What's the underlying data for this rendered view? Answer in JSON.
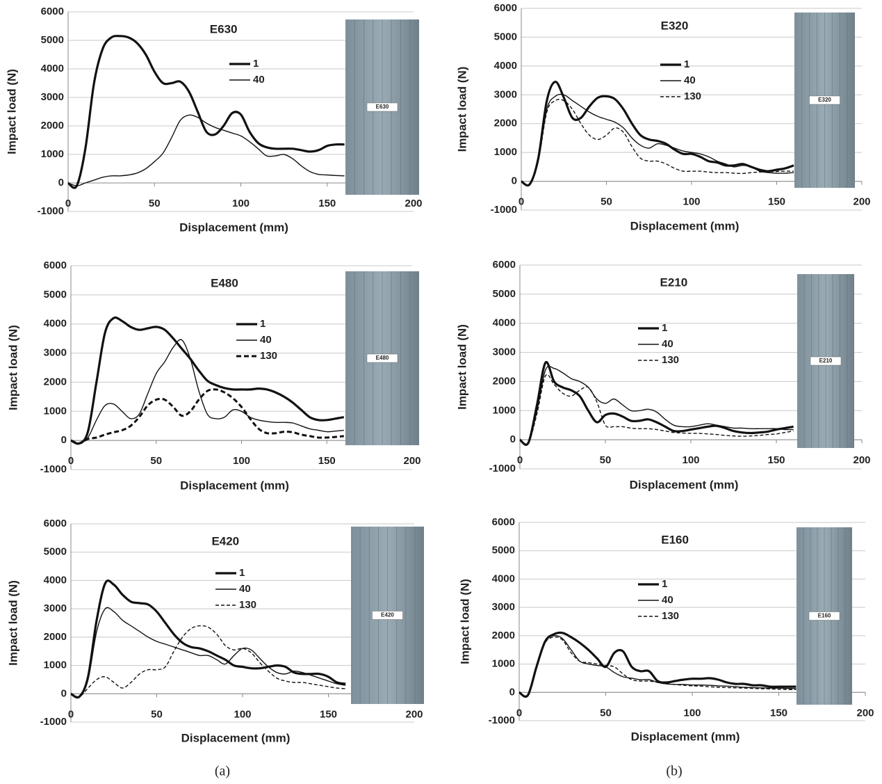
{
  "chart_data": [
    {
      "type": "line",
      "title": "E630",
      "x_label": "Displacement (mm)",
      "y_label": "Impact load  (N)",
      "photo_label": "E630",
      "xlim": [
        0,
        200
      ],
      "ylim": [
        -1000,
        6000
      ],
      "xticks": [
        0,
        50,
        100,
        150,
        200
      ],
      "yticks": [
        -1000,
        0,
        1000,
        2000,
        3000,
        4000,
        5000,
        6000
      ],
      "grid": true,
      "x": [
        0,
        5,
        10,
        15,
        20,
        25,
        30,
        35,
        40,
        45,
        50,
        55,
        60,
        65,
        70,
        75,
        80,
        85,
        90,
        95,
        100,
        105,
        110,
        115,
        120,
        125,
        130,
        135,
        140,
        145,
        150,
        155,
        160
      ],
      "series": [
        {
          "name": "1",
          "color": "#111111",
          "style": "thick",
          "values": [
            0,
            -100,
            1200,
            3500,
            4700,
            5100,
            5150,
            5100,
            4900,
            4500,
            3900,
            3500,
            3500,
            3550,
            3200,
            2500,
            1800,
            1700,
            2000,
            2450,
            2400,
            1800,
            1400,
            1250,
            1200,
            1200,
            1200,
            1150,
            1100,
            1150,
            1300,
            1350,
            1350
          ]
        },
        {
          "name": "40",
          "color": "#111111",
          "style": "thin",
          "values": [
            0,
            -100,
            0,
            100,
            200,
            250,
            250,
            280,
            350,
            500,
            750,
            1050,
            1600,
            2200,
            2380,
            2300,
            2100,
            1950,
            1850,
            1750,
            1650,
            1450,
            1200,
            950,
            950,
            1000,
            850,
            600,
            400,
            300,
            280,
            260,
            250
          ]
        }
      ]
    },
    {
      "type": "line",
      "title": "E320",
      "x_label": "Displacement (mm)",
      "y_label": "Impact load  (N)",
      "photo_label": "E320",
      "xlim": [
        0,
        200
      ],
      "ylim": [
        -1000,
        6000
      ],
      "xticks": [
        0,
        50,
        100,
        150,
        200
      ],
      "yticks": [
        -1000,
        0,
        1000,
        2000,
        3000,
        4000,
        5000,
        6000
      ],
      "grid": true,
      "x": [
        0,
        5,
        10,
        15,
        20,
        25,
        30,
        35,
        40,
        45,
        50,
        55,
        60,
        65,
        70,
        75,
        80,
        85,
        90,
        95,
        100,
        105,
        110,
        115,
        120,
        125,
        130,
        135,
        140,
        145,
        150,
        155,
        160
      ],
      "series": [
        {
          "name": "1",
          "color": "#111111",
          "style": "thick",
          "values": [
            0,
            -100,
            800,
            2800,
            3450,
            2900,
            2200,
            2200,
            2600,
            2900,
            2950,
            2850,
            2500,
            2000,
            1600,
            1450,
            1400,
            1300,
            1100,
            950,
            950,
            850,
            700,
            650,
            550,
            550,
            600,
            500,
            400,
            350,
            400,
            450,
            550
          ]
        },
        {
          "name": "40",
          "color": "#111111",
          "style": "thin",
          "values": [
            0,
            -100,
            700,
            2500,
            2950,
            3000,
            2800,
            2600,
            2400,
            2250,
            2150,
            2050,
            1850,
            1500,
            1250,
            1150,
            1300,
            1250,
            1150,
            1050,
            1000,
            950,
            850,
            700,
            600,
            500,
            550,
            500,
            350,
            300,
            280,
            280,
            300
          ]
        },
        {
          "name": "130",
          "color": "#111111",
          "style": "dashed",
          "values": [
            0,
            -100,
            700,
            2400,
            2800,
            2800,
            2500,
            2000,
            1600,
            1450,
            1600,
            1850,
            1700,
            1200,
            800,
            700,
            700,
            600,
            450,
            350,
            350,
            350,
            320,
            300,
            300,
            280,
            270,
            300,
            320,
            330,
            340,
            350,
            350
          ]
        }
      ]
    },
    {
      "type": "line",
      "title": "E480",
      "x_label": "Displacement (mm)",
      "y_label": "Impact load  (N)",
      "photo_label": "E480",
      "xlim": [
        0,
        200
      ],
      "ylim": [
        -1000,
        6000
      ],
      "xticks": [
        0,
        50,
        100,
        150,
        200
      ],
      "yticks": [
        -1000,
        0,
        1000,
        2000,
        3000,
        4000,
        5000,
        6000
      ],
      "grid": true,
      "x": [
        0,
        5,
        10,
        15,
        20,
        25,
        30,
        35,
        40,
        45,
        50,
        55,
        60,
        65,
        70,
        75,
        80,
        85,
        90,
        95,
        100,
        105,
        110,
        115,
        120,
        125,
        130,
        135,
        140,
        145,
        150,
        155,
        160
      ],
      "series": [
        {
          "name": "1",
          "color": "#111111",
          "style": "thick",
          "values": [
            0,
            -100,
            300,
            2000,
            3700,
            4200,
            4100,
            3900,
            3800,
            3850,
            3900,
            3800,
            3500,
            3150,
            2800,
            2400,
            2050,
            1900,
            1800,
            1750,
            1750,
            1750,
            1780,
            1750,
            1650,
            1500,
            1300,
            1050,
            800,
            700,
            700,
            750,
            800
          ]
        },
        {
          "name": "40",
          "color": "#111111",
          "style": "thin",
          "values": [
            0,
            -100,
            100,
            700,
            1200,
            1250,
            1000,
            750,
            900,
            1600,
            2300,
            2700,
            3200,
            3450,
            2800,
            1700,
            900,
            750,
            800,
            1050,
            1000,
            800,
            700,
            650,
            620,
            620,
            600,
            500,
            400,
            350,
            300,
            320,
            350
          ]
        },
        {
          "name": "130",
          "color": "#111111",
          "style": "thick-dashed",
          "values": [
            0,
            -100,
            50,
            100,
            200,
            280,
            350,
            500,
            800,
            1200,
            1400,
            1400,
            1150,
            850,
            1000,
            1400,
            1700,
            1750,
            1650,
            1450,
            1150,
            750,
            400,
            250,
            250,
            300,
            280,
            200,
            150,
            100,
            100,
            120,
            150
          ]
        }
      ]
    },
    {
      "type": "line",
      "title": "E210",
      "x_label": "Displacement (mm)",
      "y_label": "Impact load  (N)",
      "photo_label": "E210",
      "xlim": [
        0,
        200
      ],
      "ylim": [
        -1000,
        6000
      ],
      "xticks": [
        0,
        50,
        100,
        150,
        200
      ],
      "yticks": [
        -1000,
        0,
        1000,
        2000,
        3000,
        4000,
        5000,
        6000
      ],
      "grid": true,
      "x": [
        0,
        5,
        10,
        15,
        20,
        25,
        30,
        35,
        40,
        45,
        50,
        55,
        60,
        65,
        70,
        75,
        80,
        85,
        90,
        95,
        100,
        105,
        110,
        115,
        120,
        125,
        130,
        135,
        140,
        145,
        150,
        155,
        160
      ],
      "series": [
        {
          "name": "1",
          "color": "#111111",
          "style": "thick",
          "values": [
            0,
            -100,
            1200,
            2650,
            2000,
            1800,
            1700,
            1500,
            1000,
            600,
            850,
            900,
            800,
            650,
            650,
            700,
            600,
            450,
            300,
            300,
            350,
            400,
            450,
            480,
            400,
            300,
            250,
            230,
            250,
            280,
            350,
            400,
            450
          ]
        },
        {
          "name": "40",
          "color": "#111111",
          "style": "thin",
          "values": [
            0,
            -100,
            1000,
            2400,
            2450,
            2300,
            2100,
            2000,
            1800,
            1400,
            1250,
            1400,
            1200,
            1000,
            1000,
            1050,
            950,
            700,
            500,
            450,
            450,
            500,
            550,
            500,
            450,
            400,
            400,
            380,
            380,
            380,
            380,
            350,
            350
          ]
        },
        {
          "name": "130",
          "color": "#111111",
          "style": "dashed",
          "values": [
            0,
            -100,
            900,
            2200,
            1900,
            1600,
            1500,
            1700,
            1800,
            1300,
            500,
            450,
            450,
            400,
            380,
            380,
            350,
            300,
            250,
            230,
            220,
            220,
            200,
            180,
            150,
            130,
            120,
            130,
            150,
            180,
            200,
            250,
            300
          ]
        }
      ]
    },
    {
      "type": "line",
      "title": "E420",
      "x_label": "Displacement (mm)",
      "y_label": "Impact load  (N)",
      "photo_label": "E420",
      "xlim": [
        0,
        200
      ],
      "ylim": [
        -1000,
        6000
      ],
      "xticks": [
        0,
        50,
        100,
        150,
        200
      ],
      "yticks": [
        -1000,
        0,
        1000,
        2000,
        3000,
        4000,
        5000,
        6000
      ],
      "grid": true,
      "x": [
        0,
        5,
        10,
        15,
        20,
        25,
        30,
        35,
        40,
        45,
        50,
        55,
        60,
        65,
        70,
        75,
        80,
        85,
        90,
        95,
        100,
        105,
        110,
        115,
        120,
        125,
        130,
        135,
        140,
        145,
        150,
        155,
        160
      ],
      "series": [
        {
          "name": "1",
          "color": "#111111",
          "style": "thick",
          "values": [
            0,
            -100,
            600,
            2600,
            3900,
            3850,
            3500,
            3250,
            3200,
            3150,
            2900,
            2500,
            2100,
            1800,
            1650,
            1600,
            1500,
            1350,
            1200,
            1000,
            950,
            900,
            900,
            950,
            1000,
            950,
            750,
            700,
            700,
            700,
            600,
            400,
            350
          ]
        },
        {
          "name": "40",
          "color": "#111111",
          "style": "thin",
          "values": [
            0,
            -100,
            500,
            2200,
            3000,
            2900,
            2600,
            2400,
            2200,
            2000,
            1850,
            1750,
            1650,
            1550,
            1450,
            1350,
            1350,
            1200,
            1050,
            1350,
            1600,
            1550,
            1250,
            950,
            750,
            700,
            800,
            750,
            650,
            550,
            450,
            350,
            300
          ]
        },
        {
          "name": "130",
          "color": "#111111",
          "style": "dashed",
          "values": [
            0,
            -100,
            200,
            500,
            600,
            400,
            200,
            400,
            700,
            850,
            850,
            950,
            1500,
            2000,
            2300,
            2400,
            2350,
            2100,
            1700,
            1550,
            1600,
            1450,
            1100,
            800,
            550,
            450,
            400,
            400,
            350,
            300,
            250,
            200,
            180
          ]
        }
      ]
    },
    {
      "type": "line",
      "title": "E160",
      "x_label": "Displacement (mm)",
      "y_label": "Impact load  (N)",
      "photo_label": "E160",
      "xlim": [
        0,
        200
      ],
      "ylim": [
        -1000,
        6000
      ],
      "xticks": [
        0,
        50,
        100,
        150,
        200
      ],
      "yticks": [
        -1000,
        0,
        1000,
        2000,
        3000,
        4000,
        5000,
        6000
      ],
      "grid": true,
      "x": [
        0,
        5,
        10,
        15,
        20,
        25,
        30,
        35,
        40,
        45,
        50,
        55,
        60,
        65,
        70,
        75,
        80,
        85,
        90,
        95,
        100,
        105,
        110,
        115,
        120,
        125,
        130,
        135,
        140,
        145,
        150,
        155,
        160
      ],
      "series": [
        {
          "name": "1",
          "color": "#111111",
          "style": "thick",
          "values": [
            0,
            -100,
            900,
            1800,
            2050,
            2100,
            1950,
            1750,
            1500,
            1200,
            900,
            1400,
            1450,
            900,
            750,
            750,
            400,
            350,
            400,
            450,
            480,
            480,
            500,
            450,
            350,
            300,
            300,
            250,
            250,
            200,
            200,
            200,
            200
          ]
        },
        {
          "name": "40",
          "color": "#111111",
          "style": "thin",
          "values": [
            0,
            -100,
            900,
            1800,
            2000,
            1900,
            1500,
            1100,
            1000,
            950,
            900,
            700,
            550,
            500,
            450,
            450,
            350,
            300,
            280,
            280,
            260,
            260,
            250,
            230,
            220,
            200,
            180,
            170,
            160,
            150,
            150,
            140,
            130
          ]
        },
        {
          "name": "130",
          "color": "#111111",
          "style": "dashed",
          "values": [
            0,
            -100,
            900,
            1750,
            1950,
            1850,
            1400,
            1100,
            1050,
            1000,
            950,
            900,
            650,
            450,
            400,
            400,
            350,
            300,
            280,
            250,
            230,
            220,
            200,
            180,
            170,
            160,
            150,
            140,
            130,
            120,
            110,
            100,
            100
          ]
        }
      ]
    }
  ],
  "captions": [
    "(a)",
    "(b)"
  ]
}
